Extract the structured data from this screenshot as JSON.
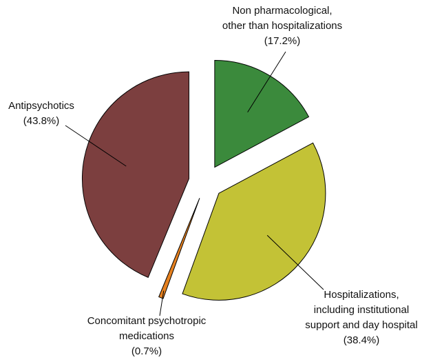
{
  "chart_data": {
    "type": "pie",
    "categories": [
      "Non pharmacological,\nother than hospitalizations",
      "Hospitalizations,\nincluding institutional\nsupport and day hospital",
      "Concomitant psychotropic\nmedications",
      "Antipsychotics"
    ],
    "values": [
      17.2,
      38.4,
      0.7,
      43.8
    ],
    "value_labels": [
      "(17.2%)",
      "(38.4%)",
      "(0.7%)",
      "(43.8%)"
    ],
    "colors": [
      "#3b8a3c",
      "#c3c236",
      "#e5801f",
      "#7c3f3f"
    ]
  }
}
